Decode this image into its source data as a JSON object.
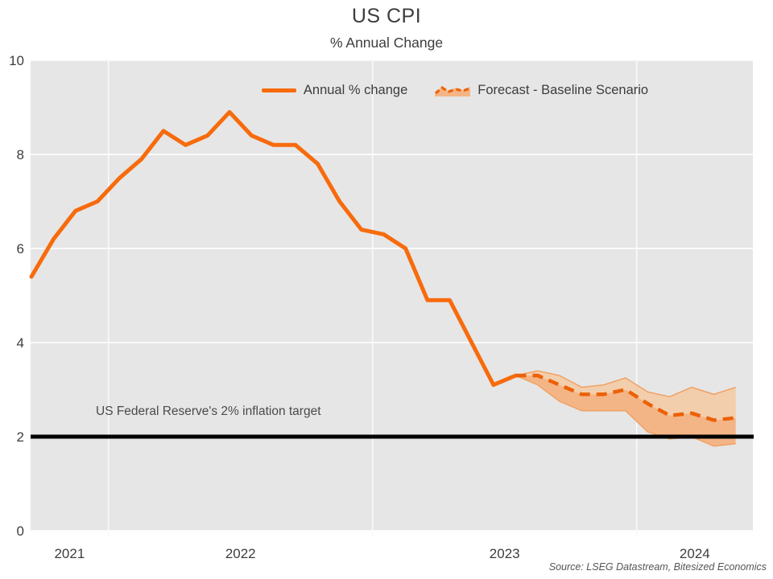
{
  "title": "US CPI",
  "subtitle": "% Annual Change",
  "legend": {
    "annual_label": "Annual % change",
    "forecast_label": "Forecast - Baseline Scenario"
  },
  "annotation": "US Federal Reserve's 2% inflation target",
  "source": "Source: LSEG Datastream, Bitesized Economics",
  "colors": {
    "line": "#F76B0D",
    "dashed_line": "#ED6007",
    "band_light": "#F3CEAC",
    "band_dark": "#F4B586",
    "band_edge": "#F0A265",
    "plot_background": "#E6E6E6",
    "gridline": "#FAFAFA",
    "target_line": "#000000",
    "text": "#3D3D3D"
  },
  "chart_data": {
    "type": "line",
    "title": "US CPI",
    "subtitle": "% Annual Change",
    "xlabel": "",
    "ylabel": "% Annual Change",
    "ylim": [
      0,
      10
    ],
    "y_ticks": [
      0,
      2,
      4,
      6,
      8,
      10
    ],
    "xlim": [
      2021.705,
      2024.44
    ],
    "x_tick_years": [
      2021,
      2022,
      2023,
      2024
    ],
    "x_unit": "decimal year, monthly points at mid-month",
    "grid": "white horizontal gridlines at y ticks and vertical gridlines at year starts on gray plot area",
    "legend_position": "top-center-inside",
    "reference_line": {
      "value": 2,
      "label": "US Federal Reserve's 2% inflation target"
    },
    "series": [
      {
        "name": "Annual % change",
        "style": "solid",
        "x": [
          2021.708,
          2021.792,
          2021.875,
          2021.958,
          2022.042,
          2022.125,
          2022.208,
          2022.292,
          2022.375,
          2022.458,
          2022.542,
          2022.625,
          2022.708,
          2022.792,
          2022.875,
          2022.958,
          2023.042,
          2023.125,
          2023.208,
          2023.292,
          2023.375,
          2023.458,
          2023.542
        ],
        "values": [
          5.4,
          6.2,
          6.8,
          7.0,
          7.5,
          7.9,
          8.5,
          8.2,
          8.4,
          8.9,
          8.4,
          8.2,
          8.2,
          7.8,
          7.0,
          6.4,
          6.3,
          6.0,
          4.9,
          4.9,
          4.0,
          3.1,
          3.3
        ]
      },
      {
        "name": "Forecast - Baseline Scenario",
        "style": "dashed",
        "x": [
          2023.542,
          2023.625,
          2023.708,
          2023.792,
          2023.875,
          2023.958,
          2024.042,
          2024.125,
          2024.208,
          2024.292,
          2024.375
        ],
        "values": [
          3.3,
          3.3,
          3.1,
          2.9,
          2.9,
          3.0,
          2.7,
          2.45,
          2.5,
          2.35,
          2.4
        ]
      },
      {
        "name": "Forecast band upper",
        "style": "band-edge",
        "x": [
          2023.542,
          2023.625,
          2023.708,
          2023.792,
          2023.875,
          2023.958,
          2024.042,
          2024.125,
          2024.208,
          2024.292,
          2024.375
        ],
        "values": [
          3.3,
          3.4,
          3.3,
          3.05,
          3.1,
          3.25,
          2.95,
          2.85,
          3.05,
          2.9,
          3.05
        ]
      },
      {
        "name": "Forecast band lower",
        "style": "band-edge",
        "x": [
          2023.542,
          2023.625,
          2023.708,
          2023.792,
          2023.875,
          2023.958,
          2024.042,
          2024.125,
          2024.208,
          2024.292,
          2024.375
        ],
        "values": [
          3.3,
          3.1,
          2.75,
          2.55,
          2.55,
          2.55,
          2.1,
          1.95,
          2.0,
          1.8,
          1.85
        ]
      }
    ]
  }
}
